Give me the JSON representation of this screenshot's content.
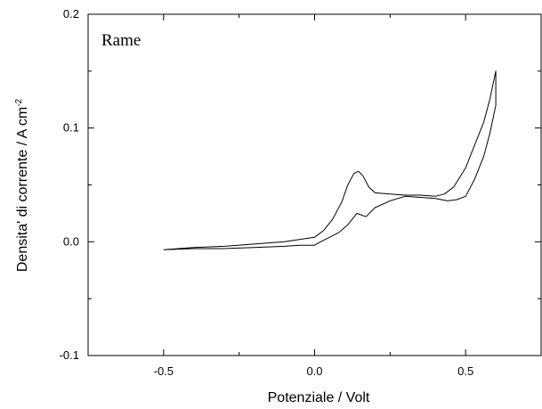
{
  "chart_data": {
    "type": "line",
    "title": "",
    "annotation": "Rame",
    "xlabel": "Potenziale / Volt",
    "ylabel": "Densita' di corrente / A cm",
    "ylabel_sup": "-2",
    "xlim": [
      -0.75,
      0.75
    ],
    "ylim": [
      -0.1,
      0.2
    ],
    "x_ticks": [
      -0.5,
      0.0,
      0.5
    ],
    "x_tick_labels": [
      "-0.5",
      "0.0",
      "0.5"
    ],
    "x_minor_ticks": [
      -0.25,
      0.25
    ],
    "y_ticks": [
      -0.1,
      0.0,
      0.1,
      0.2
    ],
    "y_tick_labels": [
      "-0.1",
      "0.0",
      "0.1",
      "0.2"
    ],
    "y_minor_ticks": [
      -0.05,
      0.05,
      0.15
    ],
    "grid": false,
    "legend": "none",
    "series": [
      {
        "line_color": "#000000",
        "x": [
          -0.5,
          -0.4,
          -0.3,
          -0.2,
          -0.1,
          -0.05,
          0.0,
          0.03,
          0.06,
          0.09,
          0.11,
          0.13,
          0.145,
          0.16,
          0.18,
          0.2,
          0.25,
          0.3,
          0.35,
          0.4,
          0.43,
          0.46,
          0.5,
          0.53,
          0.56,
          0.58,
          0.6,
          0.6,
          0.58,
          0.56,
          0.53,
          0.5,
          0.47,
          0.44,
          0.4,
          0.35,
          0.3,
          0.25,
          0.2,
          0.17,
          0.14,
          0.11,
          0.08,
          0.05,
          0.02,
          0.0,
          -0.05,
          -0.1,
          -0.2,
          -0.3,
          -0.4,
          -0.5
        ],
        "y": [
          -0.007,
          -0.005,
          -0.004,
          -0.002,
          0.0,
          0.002,
          0.004,
          0.01,
          0.02,
          0.035,
          0.05,
          0.06,
          0.062,
          0.058,
          0.048,
          0.043,
          0.042,
          0.041,
          0.041,
          0.04,
          0.042,
          0.048,
          0.065,
          0.085,
          0.105,
          0.125,
          0.15,
          0.12,
          0.095,
          0.075,
          0.055,
          0.04,
          0.037,
          0.036,
          0.038,
          0.039,
          0.04,
          0.036,
          0.03,
          0.022,
          0.025,
          0.015,
          0.008,
          0.004,
          0.0,
          -0.003,
          -0.003,
          -0.004,
          -0.005,
          -0.006,
          -0.006,
          -0.007
        ]
      }
    ]
  }
}
